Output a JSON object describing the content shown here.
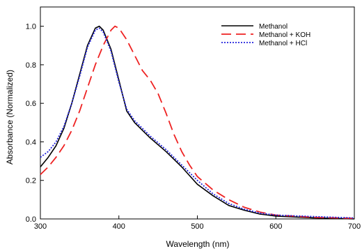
{
  "chart_data": {
    "type": "line",
    "xlabel": "Wavelength (nm)",
    "ylabel": "Absorbance (Normalized)",
    "xlim": [
      300,
      700
    ],
    "ylim": [
      0.0,
      1.1
    ],
    "x_ticks": [
      300,
      400,
      500,
      600,
      700
    ],
    "y_ticks": [
      0.0,
      0.2,
      0.4,
      0.6,
      0.8,
      1.0
    ],
    "x_tick_labels": [
      "300",
      "400",
      "500",
      "600",
      "700"
    ],
    "y_tick_labels": [
      "0.0",
      "0.2",
      "0.4",
      "0.6",
      "0.8",
      "1.0"
    ],
    "grid": false,
    "legend_position": "top-right",
    "series": [
      {
        "name": "Methanol",
        "color": "#000000",
        "style": "solid",
        "points": [
          [
            300,
            0.27
          ],
          [
            310,
            0.32
          ],
          [
            320,
            0.38
          ],
          [
            330,
            0.47
          ],
          [
            340,
            0.6
          ],
          [
            350,
            0.75
          ],
          [
            360,
            0.9
          ],
          [
            370,
            0.99
          ],
          [
            375,
            1.0
          ],
          [
            380,
            0.98
          ],
          [
            390,
            0.88
          ],
          [
            400,
            0.72
          ],
          [
            410,
            0.56
          ],
          [
            420,
            0.5
          ],
          [
            430,
            0.46
          ],
          [
            440,
            0.42
          ],
          [
            460,
            0.35
          ],
          [
            480,
            0.27
          ],
          [
            500,
            0.18
          ],
          [
            520,
            0.12
          ],
          [
            540,
            0.07
          ],
          [
            560,
            0.045
          ],
          [
            580,
            0.025
          ],
          [
            600,
            0.015
          ],
          [
            650,
            0.005
          ],
          [
            700,
            0.0
          ]
        ]
      },
      {
        "name": "Methanol + KOH",
        "color": "#ee2222",
        "style": "dashed",
        "points": [
          [
            300,
            0.23
          ],
          [
            310,
            0.27
          ],
          [
            320,
            0.32
          ],
          [
            330,
            0.38
          ],
          [
            340,
            0.46
          ],
          [
            350,
            0.56
          ],
          [
            360,
            0.68
          ],
          [
            370,
            0.8
          ],
          [
            380,
            0.9
          ],
          [
            390,
            0.98
          ],
          [
            395,
            1.0
          ],
          [
            400,
            0.99
          ],
          [
            410,
            0.93
          ],
          [
            420,
            0.85
          ],
          [
            430,
            0.77
          ],
          [
            440,
            0.72
          ],
          [
            450,
            0.65
          ],
          [
            460,
            0.55
          ],
          [
            470,
            0.44
          ],
          [
            480,
            0.35
          ],
          [
            490,
            0.28
          ],
          [
            500,
            0.22
          ],
          [
            520,
            0.15
          ],
          [
            540,
            0.1
          ],
          [
            560,
            0.06
          ],
          [
            580,
            0.035
          ],
          [
            600,
            0.02
          ],
          [
            650,
            0.008
          ],
          [
            700,
            0.003
          ]
        ]
      },
      {
        "name": "Methanol + HCl",
        "color": "#2222dd",
        "style": "dotted",
        "points": [
          [
            300,
            0.32
          ],
          [
            310,
            0.35
          ],
          [
            320,
            0.4
          ],
          [
            330,
            0.48
          ],
          [
            340,
            0.6
          ],
          [
            350,
            0.74
          ],
          [
            360,
            0.89
          ],
          [
            370,
            0.98
          ],
          [
            375,
            0.99
          ],
          [
            380,
            0.97
          ],
          [
            390,
            0.87
          ],
          [
            400,
            0.71
          ],
          [
            410,
            0.57
          ],
          [
            420,
            0.51
          ],
          [
            430,
            0.47
          ],
          [
            440,
            0.43
          ],
          [
            460,
            0.36
          ],
          [
            480,
            0.28
          ],
          [
            500,
            0.2
          ],
          [
            520,
            0.13
          ],
          [
            540,
            0.08
          ],
          [
            560,
            0.05
          ],
          [
            580,
            0.03
          ],
          [
            600,
            0.02
          ],
          [
            650,
            0.012
          ],
          [
            700,
            0.005
          ]
        ]
      }
    ]
  }
}
